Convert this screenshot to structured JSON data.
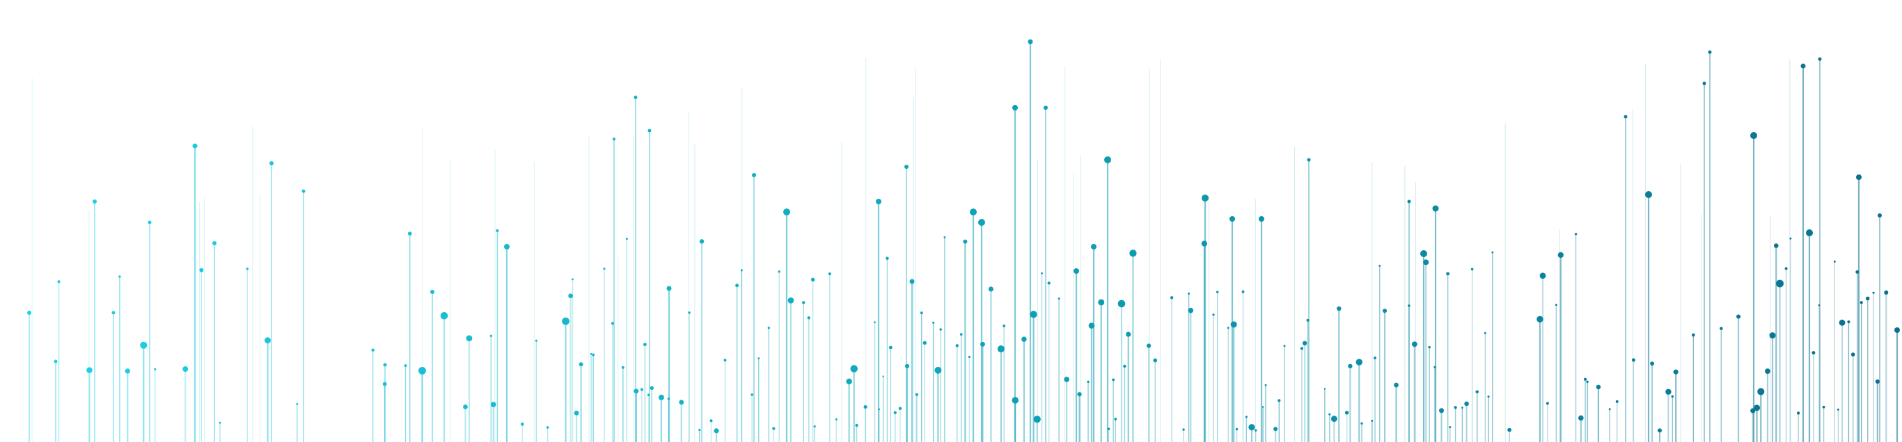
{
  "graphic": {
    "kind": "decorative-lollipop-spikes",
    "colors": {
      "start": "#22d3e6",
      "mid": "#0ea5b8",
      "end": "#0b6f8f",
      "background": "#ffffff"
    }
  }
}
